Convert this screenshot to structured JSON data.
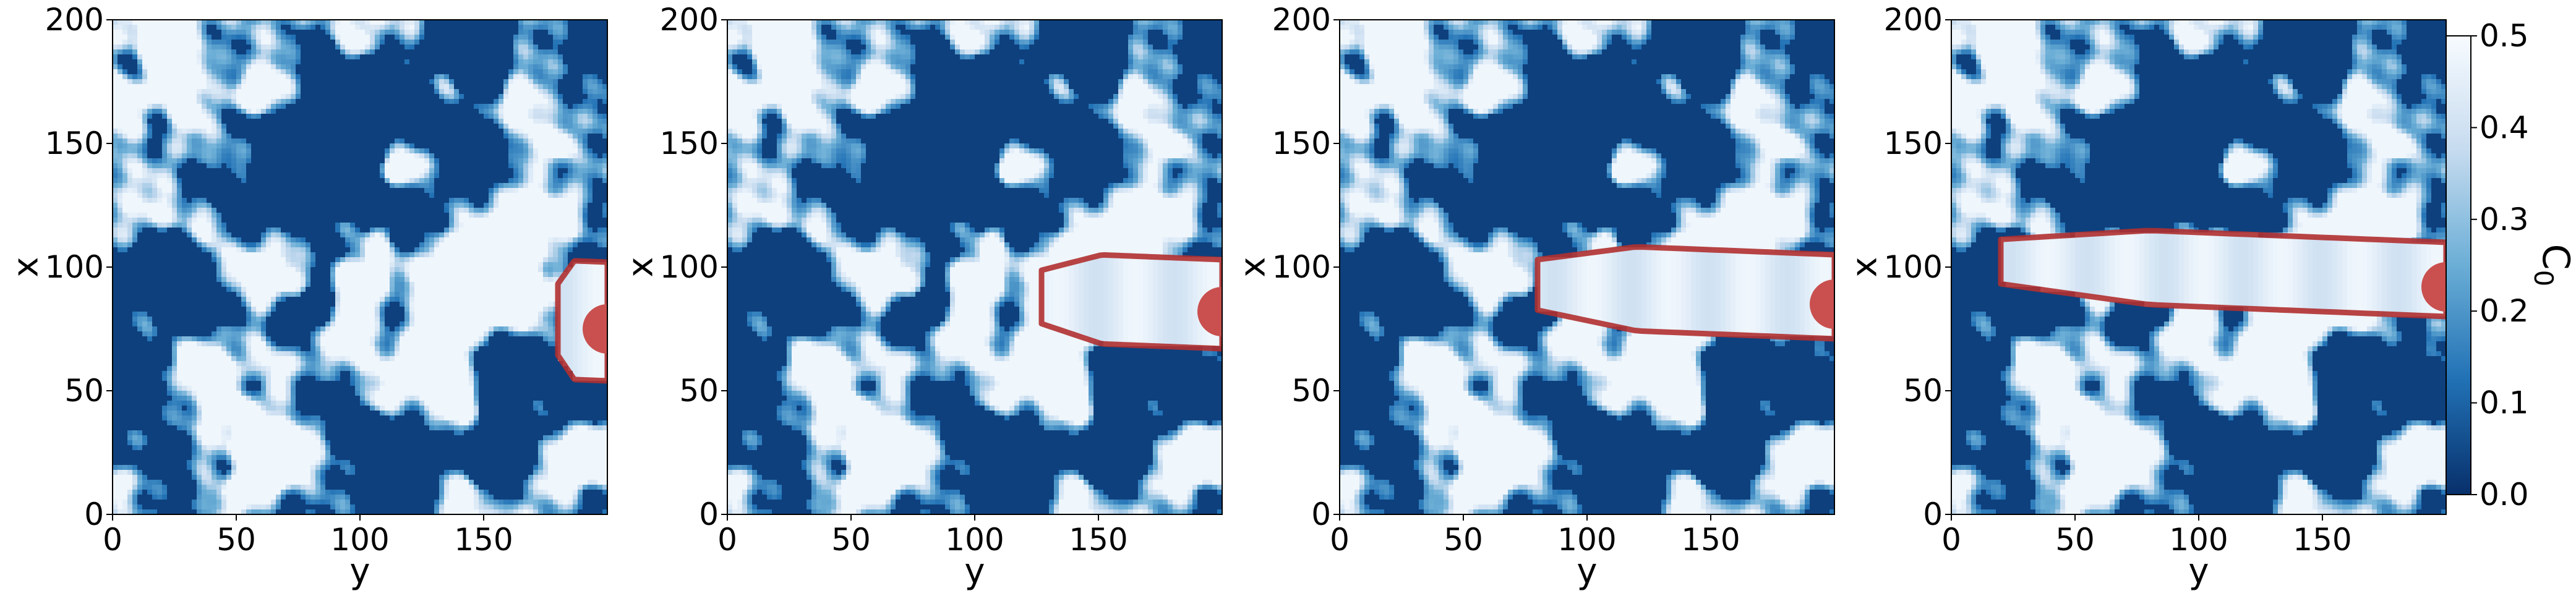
{
  "chart_data": {
    "type": "heatmap",
    "colormap": "Blues_r",
    "panels": [
      {
        "xlabel": "y",
        "ylabel": "x",
        "xlim": [
          0,
          200
        ],
        "ylim": [
          0,
          200
        ],
        "xticks": [
          0,
          50,
          100,
          150
        ],
        "yticks": [
          0,
          50,
          100,
          150,
          200
        ],
        "crack": {
          "tip_y": 180,
          "center_x": 78,
          "halfwidth": 24
        }
      },
      {
        "xlabel": "y",
        "ylabel": "x",
        "xlim": [
          0,
          200
        ],
        "ylim": [
          0,
          200
        ],
        "xticks": [
          0,
          50,
          100,
          150
        ],
        "yticks": [
          0,
          50,
          100,
          150,
          200
        ],
        "crack": {
          "tip_y": 127,
          "center_x": 85,
          "halfwidth": 18
        }
      },
      {
        "xlabel": "y",
        "ylabel": "x",
        "xlim": [
          0,
          200
        ],
        "ylim": [
          0,
          200
        ],
        "xticks": [
          0,
          50,
          100,
          150
        ],
        "yticks": [
          0,
          50,
          100,
          150,
          200
        ],
        "crack": {
          "tip_y": 80,
          "center_x": 88,
          "halfwidth": 17
        }
      },
      {
        "xlabel": "y",
        "ylabel": "x",
        "xlim": [
          0,
          200
        ],
        "ylim": [
          0,
          200
        ],
        "xticks": [
          0,
          50,
          100,
          150
        ],
        "yticks": [
          0,
          50,
          100,
          150,
          200
        ],
        "crack": {
          "tip_y": 20,
          "center_x": 95,
          "halfwidth": 15
        }
      }
    ],
    "colorbar": {
      "label": "C",
      "label_subscript": "0",
      "range": [
        0.0,
        0.5
      ],
      "ticks": [
        "0.0",
        "0.1",
        "0.2",
        "0.3",
        "0.4",
        "0.5"
      ]
    },
    "colors": {
      "low": "#08306b",
      "mid": "#4292c6",
      "high": "#f7fbff",
      "crack_fill": "#c9504f",
      "crack_edge": "#b03030"
    }
  }
}
